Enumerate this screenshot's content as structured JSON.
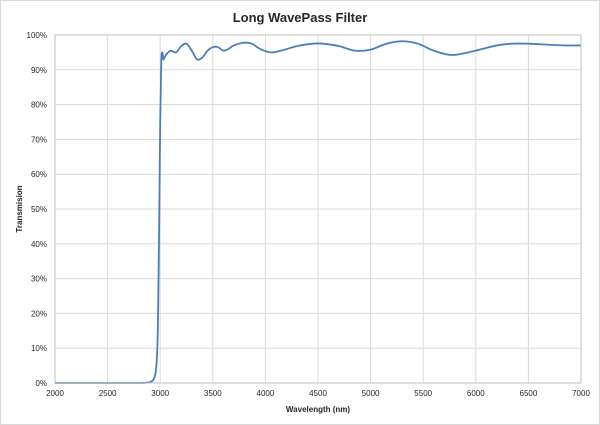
{
  "chart_data": {
    "type": "line",
    "title": "Long WavePass Filter",
    "xlabel": "Wavelength (nm)",
    "ylabel": "Transmision",
    "xlim": [
      2000,
      7000
    ],
    "ylim": [
      0,
      100
    ],
    "x_ticks": [
      2000,
      2500,
      3000,
      3500,
      4000,
      4500,
      5000,
      5500,
      6000,
      6500,
      7000
    ],
    "y_ticks": [
      "0%",
      "10%",
      "20%",
      "30%",
      "40%",
      "50%",
      "60%",
      "70%",
      "80%",
      "90%",
      "100%"
    ],
    "grid": true,
    "legend": "none",
    "colors": {
      "series": "#4a7ebb",
      "grid": "#d9d9d9"
    },
    "series": [
      {
        "x": [
          2000,
          2500,
          2800,
          2900,
          2950,
          2970,
          2980,
          2990,
          3000,
          3010,
          3020,
          3030,
          3040,
          3060,
          3100,
          3150,
          3200,
          3250,
          3300,
          3350,
          3400,
          3450,
          3500,
          3550,
          3600,
          3650,
          3700,
          3800,
          3870,
          3950,
          4050,
          4150,
          4300,
          4450,
          4550,
          4700,
          4850,
          5000,
          5150,
          5300,
          5450,
          5600,
          5750,
          5850,
          6000,
          6200,
          6350,
          6500,
          6700,
          6850,
          7000
        ],
        "y": [
          0,
          0,
          0,
          0.2,
          2,
          8,
          20,
          45,
          75,
          92,
          95,
          93,
          93.5,
          94.5,
          95.5,
          95,
          96.8,
          97.5,
          95.5,
          93,
          93.5,
          95.5,
          96.5,
          96.5,
          95.5,
          96,
          97,
          97.8,
          97.5,
          96,
          95,
          95.5,
          96.8,
          97.5,
          97.5,
          96.8,
          95.5,
          95.8,
          97.5,
          98.2,
          97.5,
          95.5,
          94.3,
          94.5,
          95.5,
          97,
          97.5,
          97.5,
          97.2,
          97,
          97
        ]
      }
    ]
  }
}
